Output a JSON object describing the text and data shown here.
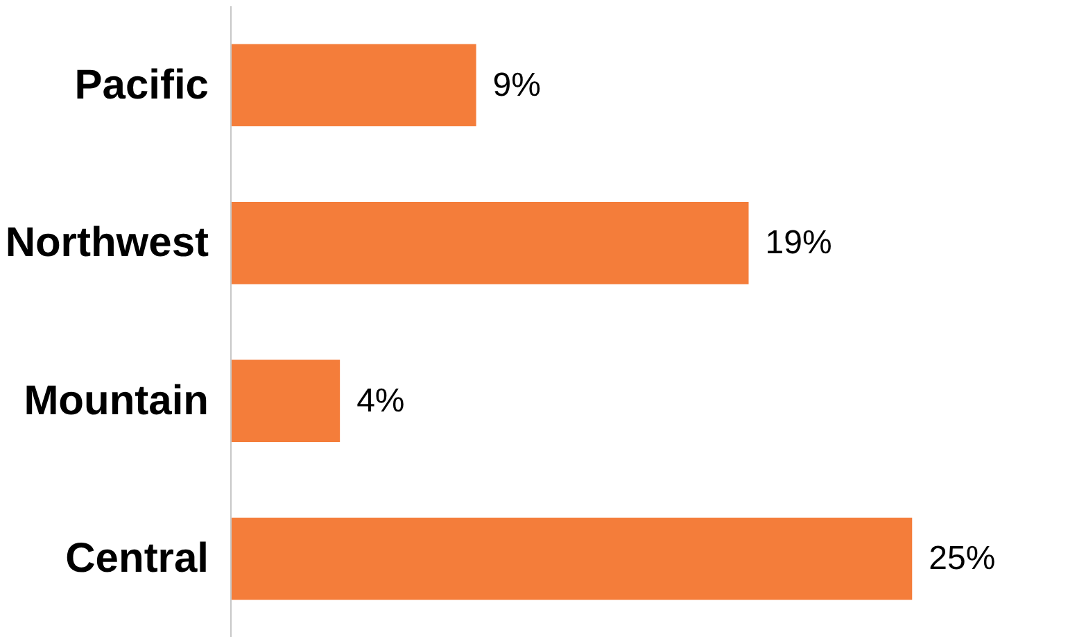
{
  "chart_data": {
    "type": "bar",
    "orientation": "horizontal",
    "categories": [
      "Pacific",
      "Northwest",
      "Mountain",
      "Central"
    ],
    "values": [
      9,
      19,
      4,
      25
    ],
    "value_labels": [
      "9%",
      "19%",
      "4%",
      "25%"
    ],
    "color": "#f47d3a"
  }
}
